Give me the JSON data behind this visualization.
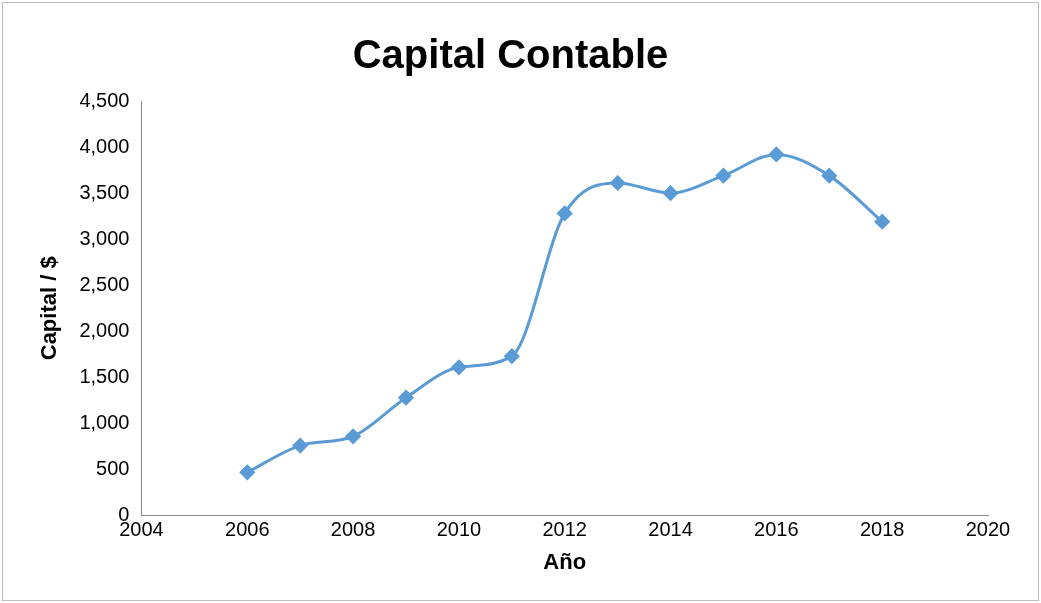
{
  "chart_data": {
    "type": "line",
    "title": "Capital Contable",
    "xlabel": "Año",
    "ylabel": "Capital / $",
    "x": [
      2006,
      2007,
      2008,
      2009,
      2010,
      2011,
      2012,
      2013,
      2014,
      2015,
      2016,
      2017,
      2018
    ],
    "series": [
      {
        "color": "#5b9bd5",
        "values": [
          470,
          760,
          860,
          1280,
          1610,
          1730,
          3280,
          3610,
          3500,
          3690,
          3920,
          3690,
          3190
        ]
      }
    ],
    "xlim": [
      2004,
      2020
    ],
    "xticks": [
      2004,
      2006,
      2008,
      2010,
      2012,
      2014,
      2016,
      2018,
      2020
    ],
    "ylim": [
      0,
      4500
    ],
    "yticks": [
      0,
      500,
      {
        "value": 1000,
        "label": "1,000"
      },
      {
        "value": 1500,
        "label": "1,500"
      },
      {
        "value": 2000,
        "label": "2,000"
      },
      {
        "value": 2500,
        "label": "2,500"
      },
      {
        "value": 3000,
        "label": "3,000"
      },
      {
        "value": 3500,
        "label": "3,500"
      },
      {
        "value": 4000,
        "label": "4,000"
      },
      {
        "value": 4500,
        "label": "4,500"
      }
    ],
    "grid": false,
    "legend": false,
    "marker": "diamond",
    "line_style": "solid"
  }
}
